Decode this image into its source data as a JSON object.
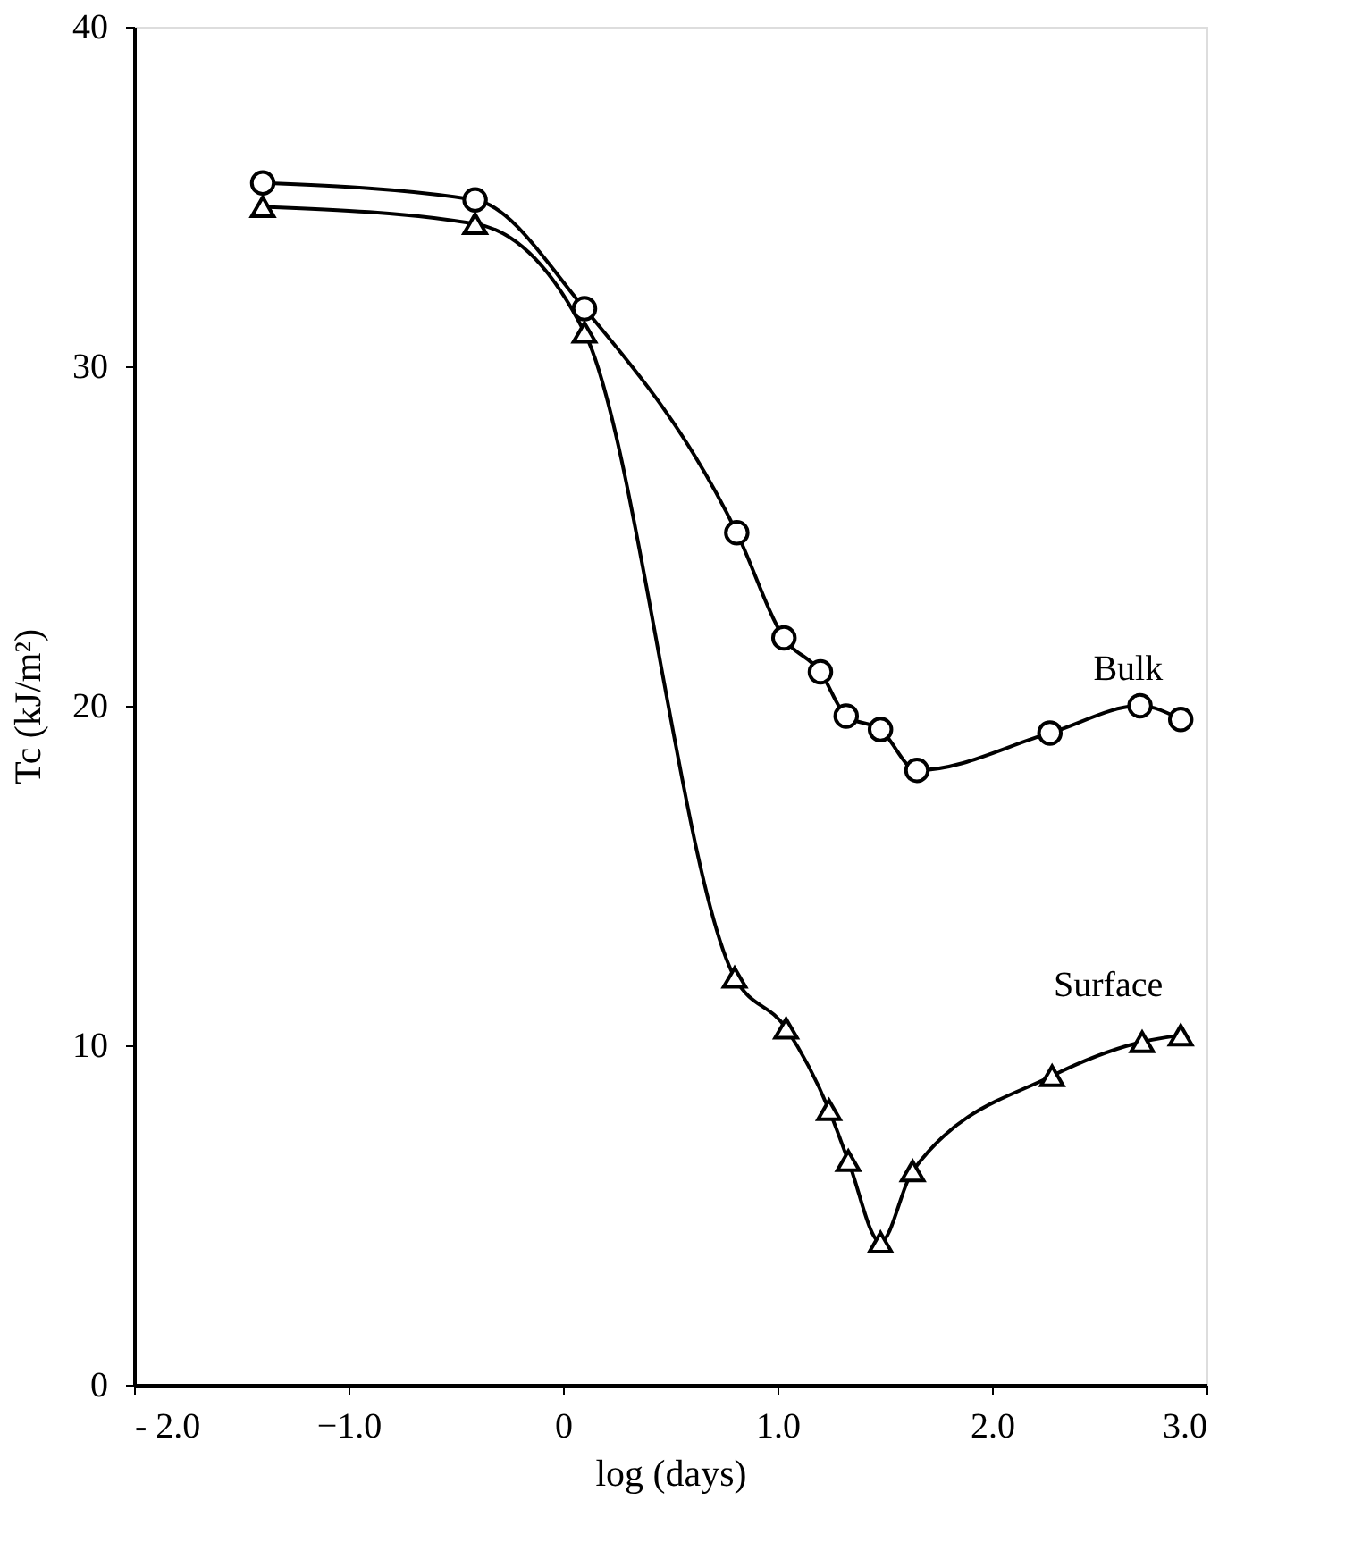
{
  "chart_data": {
    "type": "line",
    "xlabel": "log (days)",
    "ylabel": "Tc (kJ/m²)",
    "xlim": [
      -2.0,
      3.0
    ],
    "xticks": [
      {
        "value": -2.0,
        "label": "- 2.0"
      },
      {
        "value": -1.0,
        "label": "−1.0"
      },
      0,
      {
        "value": 1.0,
        "label": "1.0"
      },
      {
        "value": 2.0,
        "label": "2.0"
      },
      {
        "value": 3.0,
        "label": "3.0"
      }
    ],
    "ylim": [
      0,
      40
    ],
    "yticks": [
      0,
      10,
      20,
      30,
      40
    ],
    "grid": false,
    "line_style": "solid",
    "series": [
      {
        "name": "Bulk",
        "color": "#000000",
        "marker": "circle",
        "x": [
          -1.4,
          -0.41,
          0.1,
          0.81,
          1.03,
          1.2,
          1.32,
          1.48,
          1.65,
          2.27,
          2.69,
          2.88
        ],
        "values": [
          35.4,
          34.9,
          31.7,
          25.1,
          22.0,
          21.0,
          19.7,
          19.3,
          18.1,
          19.2,
          20.0,
          19.6
        ]
      },
      {
        "name": "Surface",
        "color": "#000000",
        "marker": "triangle",
        "x": [
          -1.4,
          -0.41,
          0.1,
          0.8,
          1.04,
          1.24,
          1.33,
          1.48,
          1.63,
          2.28,
          2.7,
          2.88
        ],
        "values": [
          34.7,
          34.2,
          31.0,
          12.0,
          10.5,
          8.1,
          6.6,
          4.2,
          6.3,
          9.1,
          10.1,
          10.3
        ]
      }
    ]
  }
}
